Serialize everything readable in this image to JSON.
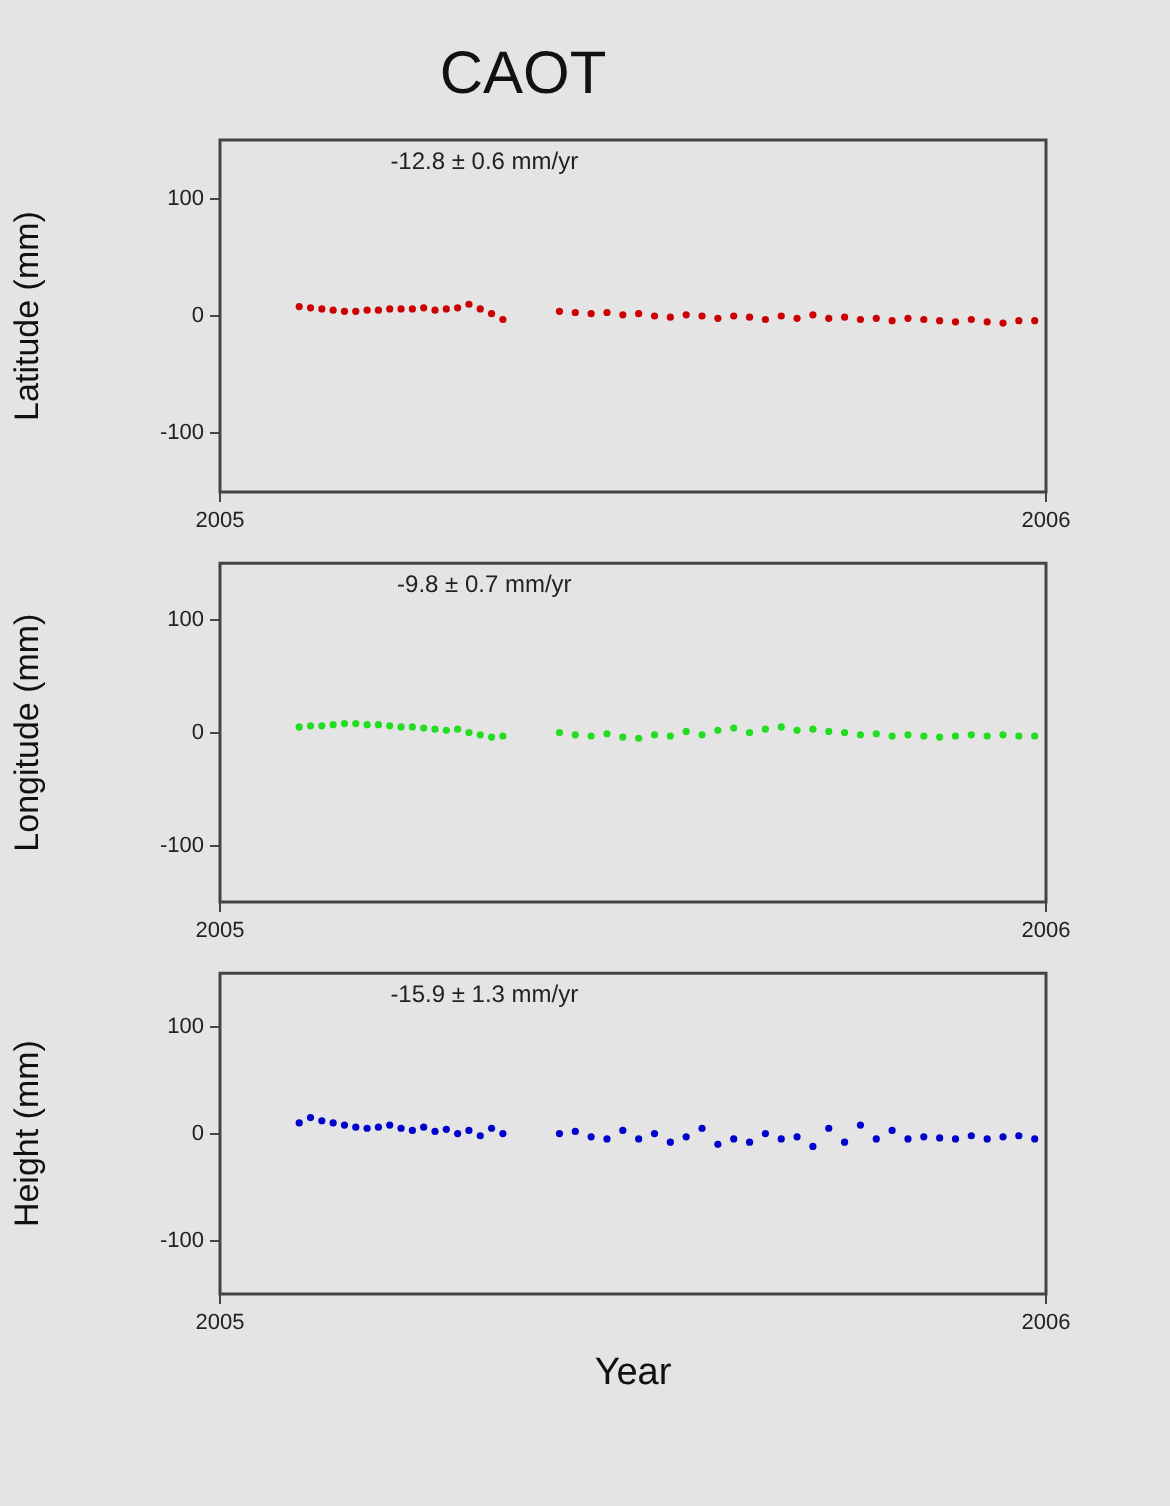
{
  "chart_data": [
    {
      "type": "scatter",
      "title": "CAOT",
      "ylabel": "Latitude (mm)",
      "annotations": [
        "-12.8 ± 0.6 mm/yr"
      ],
      "xlim": [
        "2005",
        "2006"
      ],
      "xticks": [
        "2005",
        "2006"
      ],
      "ylim": [
        -150,
        150
      ],
      "yticks": [
        -100,
        0,
        100
      ],
      "marker": "circle",
      "grid": false,
      "legend": false,
      "x": [
        "2005-02-05",
        "2005-02-10",
        "2005-02-15",
        "2005-02-20",
        "2005-02-25",
        "2005-03-02",
        "2005-03-07",
        "2005-03-12",
        "2005-03-17",
        "2005-03-22",
        "2005-03-27",
        "2005-04-01",
        "2005-04-06",
        "2005-04-11",
        "2005-04-16",
        "2005-04-21",
        "2005-04-26",
        "2005-05-01",
        "2005-05-06",
        "2005-05-31",
        "2005-06-07",
        "2005-06-14",
        "2005-06-21",
        "2005-06-28",
        "2005-07-05",
        "2005-07-12",
        "2005-07-19",
        "2005-07-26",
        "2005-08-02",
        "2005-08-09",
        "2005-08-16",
        "2005-08-23",
        "2005-08-30",
        "2005-09-06",
        "2005-09-13",
        "2005-09-20",
        "2005-09-27",
        "2005-10-04",
        "2005-10-11",
        "2005-10-18",
        "2005-10-25",
        "2005-11-01",
        "2005-11-08",
        "2005-11-15",
        "2005-11-22",
        "2005-11-29",
        "2005-12-06",
        "2005-12-13",
        "2005-12-20",
        "2005-12-27"
      ],
      "series": [
        {
          "color": "#cc0000",
          "values": [
            8,
            7,
            6,
            5,
            4,
            4,
            5,
            5,
            6,
            6,
            6,
            7,
            5,
            6,
            7,
            10,
            6,
            2,
            -3,
            4,
            3,
            2,
            3,
            1,
            2,
            0,
            -1,
            1,
            0,
            -2,
            0,
            -1,
            -3,
            0,
            -2,
            1,
            -2,
            -1,
            -3,
            -2,
            -4,
            -2,
            -3,
            -4,
            -5,
            -3,
            -5,
            -6,
            -4,
            -4
          ]
        }
      ]
    },
    {
      "type": "scatter",
      "ylabel": "Longitude (mm)",
      "annotations": [
        "-9.8 ± 0.7 mm/yr"
      ],
      "xlim": [
        "2005",
        "2006"
      ],
      "xticks": [
        "2005",
        "2006"
      ],
      "ylim": [
        -150,
        150
      ],
      "yticks": [
        -100,
        0,
        100
      ],
      "marker": "circle",
      "grid": false,
      "legend": false,
      "x": [
        "2005-02-05",
        "2005-02-10",
        "2005-02-15",
        "2005-02-20",
        "2005-02-25",
        "2005-03-02",
        "2005-03-07",
        "2005-03-12",
        "2005-03-17",
        "2005-03-22",
        "2005-03-27",
        "2005-04-01",
        "2005-04-06",
        "2005-04-11",
        "2005-04-16",
        "2005-04-21",
        "2005-04-26",
        "2005-05-01",
        "2005-05-06",
        "2005-05-31",
        "2005-06-07",
        "2005-06-14",
        "2005-06-21",
        "2005-06-28",
        "2005-07-05",
        "2005-07-12",
        "2005-07-19",
        "2005-07-26",
        "2005-08-02",
        "2005-08-09",
        "2005-08-16",
        "2005-08-23",
        "2005-08-30",
        "2005-09-06",
        "2005-09-13",
        "2005-09-20",
        "2005-09-27",
        "2005-10-04",
        "2005-10-11",
        "2005-10-18",
        "2005-10-25",
        "2005-11-01",
        "2005-11-08",
        "2005-11-15",
        "2005-11-22",
        "2005-11-29",
        "2005-12-06",
        "2005-12-13",
        "2005-12-20",
        "2005-12-27"
      ],
      "series": [
        {
          "color": "#22dd22",
          "values": [
            5,
            6,
            6,
            7,
            8,
            8,
            7,
            7,
            6,
            5,
            5,
            4,
            3,
            2,
            3,
            0,
            -2,
            -4,
            -3,
            0,
            -2,
            -3,
            -1,
            -4,
            -5,
            -2,
            -3,
            1,
            -2,
            2,
            4,
            0,
            3,
            5,
            2,
            3,
            1,
            0,
            -2,
            -1,
            -3,
            -2,
            -3,
            -4,
            -3,
            -2,
            -3,
            -2,
            -3,
            -3
          ]
        }
      ]
    },
    {
      "type": "scatter",
      "ylabel": "Height (mm)",
      "xlabel": "Year",
      "annotations": [
        "-15.9 ± 1.3 mm/yr"
      ],
      "xlim": [
        "2005",
        "2006"
      ],
      "xticks": [
        "2005",
        "2006"
      ],
      "ylim": [
        -150,
        150
      ],
      "yticks": [
        -100,
        0,
        100
      ],
      "marker": "circle",
      "grid": false,
      "legend": false,
      "x": [
        "2005-02-05",
        "2005-02-10",
        "2005-02-15",
        "2005-02-20",
        "2005-02-25",
        "2005-03-02",
        "2005-03-07",
        "2005-03-12",
        "2005-03-17",
        "2005-03-22",
        "2005-03-27",
        "2005-04-01",
        "2005-04-06",
        "2005-04-11",
        "2005-04-16",
        "2005-04-21",
        "2005-04-26",
        "2005-05-01",
        "2005-05-06",
        "2005-05-31",
        "2005-06-07",
        "2005-06-14",
        "2005-06-21",
        "2005-06-28",
        "2005-07-05",
        "2005-07-12",
        "2005-07-19",
        "2005-07-26",
        "2005-08-02",
        "2005-08-09",
        "2005-08-16",
        "2005-08-23",
        "2005-08-30",
        "2005-09-06",
        "2005-09-13",
        "2005-09-20",
        "2005-09-27",
        "2005-10-04",
        "2005-10-11",
        "2005-10-18",
        "2005-10-25",
        "2005-11-01",
        "2005-11-08",
        "2005-11-15",
        "2005-11-22",
        "2005-11-29",
        "2005-12-06",
        "2005-12-13",
        "2005-12-20",
        "2005-12-27"
      ],
      "series": [
        {
          "color": "#0000cc",
          "values": [
            10,
            15,
            12,
            10,
            8,
            6,
            5,
            6,
            8,
            5,
            3,
            6,
            2,
            4,
            0,
            3,
            -2,
            5,
            0,
            0,
            2,
            -3,
            -5,
            3,
            -5,
            0,
            -8,
            -3,
            5,
            -10,
            -5,
            -8,
            0,
            -5,
            -3,
            -12,
            5,
            -8,
            8,
            -5,
            3,
            -5,
            -3,
            -4,
            -5,
            -2,
            -5,
            -3,
            -2,
            -5
          ]
        }
      ]
    }
  ]
}
